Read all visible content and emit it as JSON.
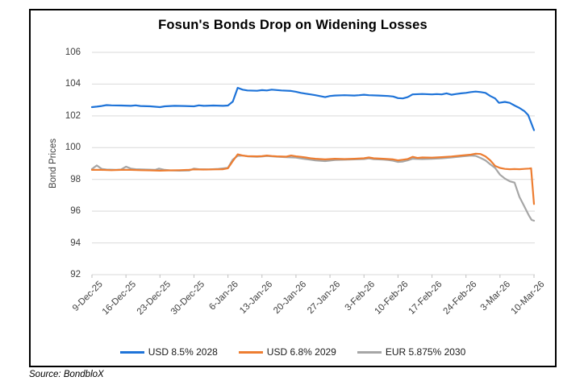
{
  "title": "Fosun's Bonds Drop on Widening Losses",
  "source_note": "Source: BondbloX",
  "chart_data": {
    "type": "line",
    "title": "Fosun's Bonds Drop on Widening Losses",
    "xlabel": "",
    "ylabel": "Bond Prices",
    "ylim": [
      92,
      106
    ],
    "yticks": [
      92,
      94,
      96,
      98,
      100,
      102,
      104,
      106
    ],
    "grid": "horizontal",
    "legend_position": "bottom",
    "x_tick_labels": [
      "9-Dec-25",
      "16-Dec-25",
      "23-Dec-25",
      "30-Dec-25",
      "6-Jan-26",
      "13-Jan-26",
      "20-Jan-26",
      "27-Jan-26",
      "3-Feb-26",
      "10-Feb-26",
      "17-Feb-26",
      "24-Feb-26",
      "3-Mar-26",
      "10-Mar-26"
    ],
    "x_unit": "days since 9-Dec-25",
    "x_range_days": [
      0,
      91
    ],
    "x_tick_interval_days": 7,
    "series": [
      {
        "name": "USD 8.5% 2028",
        "color": "#1E73D8",
        "points": [
          [
            0,
            102.55
          ],
          [
            1,
            102.58
          ],
          [
            2,
            102.62
          ],
          [
            3,
            102.68
          ],
          [
            4,
            102.66
          ],
          [
            6,
            102.65
          ],
          [
            8,
            102.63
          ],
          [
            9,
            102.66
          ],
          [
            10,
            102.62
          ],
          [
            12,
            102.6
          ],
          [
            14,
            102.55
          ],
          [
            15,
            102.6
          ],
          [
            17,
            102.63
          ],
          [
            19,
            102.62
          ],
          [
            21,
            102.6
          ],
          [
            22,
            102.66
          ],
          [
            23,
            102.63
          ],
          [
            25,
            102.65
          ],
          [
            27,
            102.63
          ],
          [
            28,
            102.65
          ],
          [
            29,
            102.9
          ],
          [
            30,
            103.77
          ],
          [
            31,
            103.65
          ],
          [
            32,
            103.6
          ],
          [
            34,
            103.58
          ],
          [
            35,
            103.62
          ],
          [
            36,
            103.6
          ],
          [
            37,
            103.65
          ],
          [
            39,
            103.6
          ],
          [
            41,
            103.57
          ],
          [
            42,
            103.52
          ],
          [
            43,
            103.45
          ],
          [
            44,
            103.4
          ],
          [
            45,
            103.35
          ],
          [
            46,
            103.3
          ],
          [
            48,
            103.18
          ],
          [
            49,
            103.25
          ],
          [
            50,
            103.28
          ],
          [
            52,
            103.3
          ],
          [
            54,
            103.28
          ],
          [
            55,
            103.3
          ],
          [
            56,
            103.33
          ],
          [
            57,
            103.3
          ],
          [
            59,
            103.28
          ],
          [
            61,
            103.25
          ],
          [
            62,
            103.22
          ],
          [
            63,
            103.12
          ],
          [
            64,
            103.1
          ],
          [
            65,
            103.18
          ],
          [
            66,
            103.35
          ],
          [
            68,
            103.38
          ],
          [
            70,
            103.35
          ],
          [
            71,
            103.37
          ],
          [
            72,
            103.35
          ],
          [
            73,
            103.42
          ],
          [
            74,
            103.33
          ],
          [
            75,
            103.38
          ],
          [
            76,
            103.42
          ],
          [
            77,
            103.45
          ],
          [
            78,
            103.5
          ],
          [
            79,
            103.53
          ],
          [
            80,
            103.5
          ],
          [
            81,
            103.45
          ],
          [
            82,
            103.25
          ],
          [
            83,
            103.1
          ],
          [
            83.8,
            102.82
          ],
          [
            85,
            102.88
          ],
          [
            86,
            102.82
          ],
          [
            87,
            102.65
          ],
          [
            88,
            102.5
          ],
          [
            89,
            102.3
          ],
          [
            89.8,
            102.05
          ],
          [
            91,
            101.1
          ]
        ]
      },
      {
        "name": "USD 6.8% 2029",
        "color": "#ED7D31",
        "points": [
          [
            0,
            98.6
          ],
          [
            2,
            98.6
          ],
          [
            4,
            98.58
          ],
          [
            6,
            98.6
          ],
          [
            8,
            98.6
          ],
          [
            10,
            98.58
          ],
          [
            12,
            98.57
          ],
          [
            14,
            98.55
          ],
          [
            16,
            98.57
          ],
          [
            18,
            98.58
          ],
          [
            20,
            98.6
          ],
          [
            21,
            98.63
          ],
          [
            23,
            98.62
          ],
          [
            25,
            98.63
          ],
          [
            27,
            98.64
          ],
          [
            28,
            98.7
          ],
          [
            29,
            99.15
          ],
          [
            30,
            99.58
          ],
          [
            31,
            99.5
          ],
          [
            32,
            99.46
          ],
          [
            34,
            99.45
          ],
          [
            35,
            99.46
          ],
          [
            36,
            99.5
          ],
          [
            37,
            99.47
          ],
          [
            38,
            99.45
          ],
          [
            40,
            99.43
          ],
          [
            41,
            99.5
          ],
          [
            42,
            99.45
          ],
          [
            43,
            99.42
          ],
          [
            44,
            99.38
          ],
          [
            45,
            99.33
          ],
          [
            46,
            99.3
          ],
          [
            48,
            99.26
          ],
          [
            50,
            99.3
          ],
          [
            52,
            99.28
          ],
          [
            54,
            99.3
          ],
          [
            56,
            99.33
          ],
          [
            57,
            99.38
          ],
          [
            58,
            99.33
          ],
          [
            60,
            99.3
          ],
          [
            61,
            99.28
          ],
          [
            62,
            99.26
          ],
          [
            63,
            99.2
          ],
          [
            64,
            99.24
          ],
          [
            65,
            99.28
          ],
          [
            66,
            99.42
          ],
          [
            67,
            99.35
          ],
          [
            68,
            99.38
          ],
          [
            70,
            99.37
          ],
          [
            72,
            99.4
          ],
          [
            74,
            99.44
          ],
          [
            76,
            99.5
          ],
          [
            78,
            99.56
          ],
          [
            79,
            99.62
          ],
          [
            80,
            99.6
          ],
          [
            81,
            99.45
          ],
          [
            82,
            99.2
          ],
          [
            83,
            98.85
          ],
          [
            84,
            98.72
          ],
          [
            85,
            98.66
          ],
          [
            86,
            98.64
          ],
          [
            87,
            98.65
          ],
          [
            88,
            98.64
          ],
          [
            89,
            98.66
          ],
          [
            90,
            98.68
          ],
          [
            90.4,
            98.7
          ],
          [
            91,
            96.45
          ]
        ]
      },
      {
        "name": "EUR 5.875% 2030",
        "color": "#A6A6A6",
        "points": [
          [
            0,
            98.65
          ],
          [
            1,
            98.88
          ],
          [
            2,
            98.66
          ],
          [
            3,
            98.62
          ],
          [
            5,
            98.6
          ],
          [
            6,
            98.62
          ],
          [
            7,
            98.8
          ],
          [
            8,
            98.68
          ],
          [
            9,
            98.64
          ],
          [
            11,
            98.62
          ],
          [
            13,
            98.6
          ],
          [
            13.8,
            98.68
          ],
          [
            15,
            98.6
          ],
          [
            16,
            98.57
          ],
          [
            18,
            98.55
          ],
          [
            20,
            98.56
          ],
          [
            21,
            98.68
          ],
          [
            22,
            98.64
          ],
          [
            24,
            98.63
          ],
          [
            26,
            98.66
          ],
          [
            28,
            98.73
          ],
          [
            29,
            99.25
          ],
          [
            30,
            99.48
          ],
          [
            31,
            99.5
          ],
          [
            32,
            99.45
          ],
          [
            34,
            99.42
          ],
          [
            35,
            99.44
          ],
          [
            36,
            99.47
          ],
          [
            38,
            99.43
          ],
          [
            40,
            99.4
          ],
          [
            42,
            99.37
          ],
          [
            43,
            99.32
          ],
          [
            44,
            99.28
          ],
          [
            45,
            99.24
          ],
          [
            46,
            99.2
          ],
          [
            48,
            99.15
          ],
          [
            50,
            99.22
          ],
          [
            52,
            99.24
          ],
          [
            54,
            99.26
          ],
          [
            56,
            99.28
          ],
          [
            57,
            99.32
          ],
          [
            58,
            99.27
          ],
          [
            60,
            99.25
          ],
          [
            61,
            99.22
          ],
          [
            62,
            99.18
          ],
          [
            63,
            99.1
          ],
          [
            64,
            99.12
          ],
          [
            65,
            99.2
          ],
          [
            66,
            99.3
          ],
          [
            68,
            99.28
          ],
          [
            70,
            99.3
          ],
          [
            72,
            99.33
          ],
          [
            74,
            99.38
          ],
          [
            76,
            99.44
          ],
          [
            78,
            99.5
          ],
          [
            79,
            99.48
          ],
          [
            80,
            99.35
          ],
          [
            81,
            99.2
          ],
          [
            82,
            98.95
          ],
          [
            83,
            98.72
          ],
          [
            84,
            98.3
          ],
          [
            85,
            98.05
          ],
          [
            86,
            97.88
          ],
          [
            87,
            97.8
          ],
          [
            88,
            96.9
          ],
          [
            89,
            96.3
          ],
          [
            90,
            95.7
          ],
          [
            90.5,
            95.45
          ],
          [
            91,
            95.4
          ]
        ]
      }
    ],
    "style": {
      "gridline_color": "#D9D9D9",
      "tick_color": "#BFBFBF",
      "axis_text_color": "#3f3f3f"
    }
  }
}
